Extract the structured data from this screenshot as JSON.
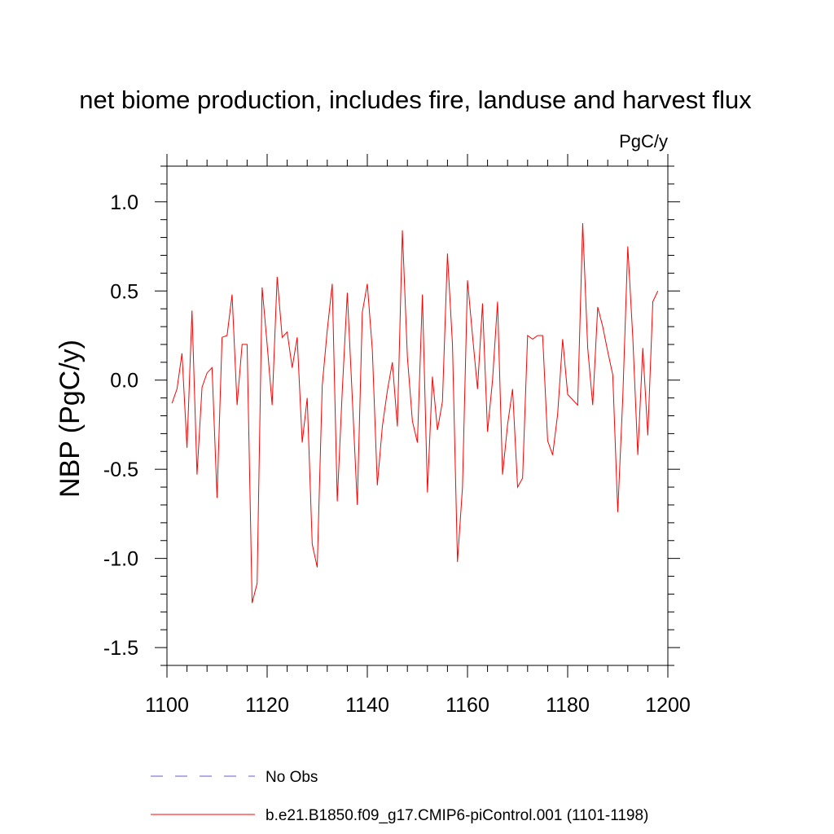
{
  "chart_data": {
    "type": "line",
    "title": "net biome production, includes fire, landuse and harvest flux",
    "units": "PgC/y",
    "xlabel": "",
    "ylabel": "NBP  (PgC/y)",
    "xlim": [
      1100,
      1200
    ],
    "ylim": [
      -1.6,
      1.2
    ],
    "xticks": [
      1100,
      1120,
      1140,
      1160,
      1180,
      1200
    ],
    "xtick_labels": [
      "1100",
      "1120",
      "1140",
      "1160",
      "1180",
      "1200"
    ],
    "yticks": [
      -1.5,
      -1.0,
      -0.5,
      0.0,
      0.5,
      1.0
    ],
    "ytick_labels": [
      "-1.5",
      "-1.0",
      "-0.5",
      "0.0",
      "0.5",
      "1.0"
    ],
    "grid": false,
    "legend_position": "bottom",
    "series": [
      {
        "name": "No Obs",
        "color": "#6a5acd",
        "dashed": true,
        "x": [],
        "y": []
      },
      {
        "name": "b.e21.B1850.f09_g17.CMIP6-piControl.001 (1101-1198)",
        "color": "#ff0000",
        "dashed": false,
        "x": [
          1101,
          1102,
          1103,
          1104,
          1105,
          1106,
          1107,
          1108,
          1109,
          1110,
          1111,
          1112,
          1113,
          1114,
          1115,
          1116,
          1117,
          1118,
          1119,
          1120,
          1121,
          1122,
          1123,
          1124,
          1125,
          1126,
          1127,
          1128,
          1129,
          1130,
          1131,
          1132,
          1133,
          1134,
          1135,
          1136,
          1137,
          1138,
          1139,
          1140,
          1141,
          1142,
          1143,
          1144,
          1145,
          1146,
          1147,
          1148,
          1149,
          1150,
          1151,
          1152,
          1153,
          1154,
          1155,
          1156,
          1157,
          1158,
          1159,
          1160,
          1161,
          1162,
          1163,
          1164,
          1165,
          1166,
          1167,
          1168,
          1169,
          1170,
          1171,
          1172,
          1173,
          1174,
          1175,
          1176,
          1177,
          1178,
          1179,
          1180,
          1181,
          1182,
          1183,
          1184,
          1185,
          1186,
          1187,
          1188,
          1189,
          1190,
          1191,
          1192,
          1193,
          1194,
          1195,
          1196,
          1197,
          1198
        ],
        "y": [
          -0.13,
          -0.05,
          0.15,
          -0.38,
          0.39,
          -0.53,
          -0.04,
          0.04,
          0.07,
          -0.66,
          0.24,
          0.25,
          0.48,
          -0.14,
          0.2,
          0.2,
          -1.25,
          -1.14,
          0.52,
          0.2,
          -0.14,
          0.58,
          0.24,
          0.27,
          0.07,
          0.24,
          -0.35,
          -0.1,
          -0.92,
          -1.05,
          -0.03,
          0.28,
          0.54,
          -0.68,
          -0.06,
          0.49,
          -0.1,
          -0.7,
          0.38,
          0.54,
          0.17,
          -0.59,
          -0.26,
          -0.06,
          0.1,
          -0.26,
          0.84,
          0.13,
          -0.23,
          -0.35,
          0.48,
          -0.63,
          0.02,
          -0.28,
          -0.12,
          0.71,
          0.2,
          -1.02,
          -0.6,
          0.56,
          0.25,
          -0.05,
          0.43,
          -0.29,
          0.0,
          0.44,
          -0.53,
          -0.25,
          -0.05,
          -0.6,
          -0.55,
          0.25,
          0.23,
          0.25,
          0.25,
          -0.34,
          -0.42,
          -0.19,
          0.23,
          -0.08,
          -0.11,
          -0.14,
          0.88,
          0.18,
          -0.14,
          0.41,
          0.3,
          0.16,
          0.03,
          -0.74,
          -0.1,
          0.75,
          0.24,
          -0.42,
          0.18,
          -0.31,
          0.44,
          0.5
        ]
      }
    ]
  }
}
